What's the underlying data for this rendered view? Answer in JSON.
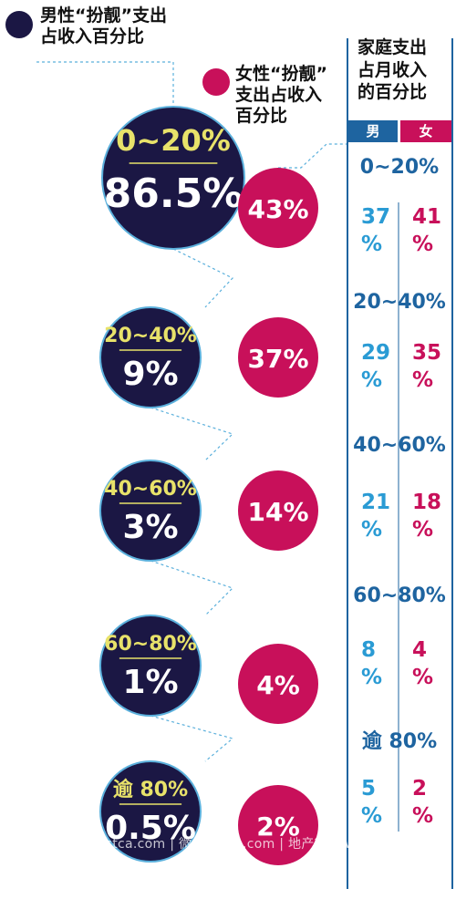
{
  "legend": {
    "male_line1": "男性“扮靓”支出",
    "male_line2": "占收入百分比",
    "female_line1": "女性“扮靓”",
    "female_line2": "支出占收入",
    "female_line3": "百分比"
  },
  "side_table": {
    "title_line1": "家庭支出",
    "title_line2": "占月收入",
    "title_line3": "的百分比",
    "header_male": "男",
    "header_female": "女"
  },
  "watermark": "加西网 westca.com | 微 westca.com | 地产微信 westcahouse",
  "colors": {
    "male": "#1b1744",
    "female": "#c8105a",
    "range_label": "#e8e26a",
    "side_blue": "#1e64a0",
    "side_male_value": "#2a9bd4",
    "connector": "#5bb0dc"
  },
  "chart_data": {
    "type": "table",
    "categories": [
      "0~20%",
      "20~40%",
      "40~60%",
      "60~80%",
      "逾 80%"
    ],
    "series": [
      {
        "name": "男性“扮靓”支出占收入百分比",
        "values": [
          86.5,
          9,
          3,
          1,
          0.5
        ],
        "labels": [
          "86.5%",
          "9%",
          "3%",
          "1%",
          "0.5%"
        ]
      },
      {
        "name": "女性“扮靓”支出占收入百分比",
        "values": [
          43,
          37,
          14,
          4,
          2
        ],
        "labels": [
          "43%",
          "37%",
          "14%",
          "4%",
          "2%"
        ]
      },
      {
        "name": "家庭支出占月收入的百分比 男",
        "values": [
          37,
          29,
          21,
          8,
          5
        ],
        "labels": [
          "37",
          "29",
          "21",
          "8",
          "5"
        ]
      },
      {
        "name": "家庭支出占月收入的百分比 女",
        "values": [
          41,
          35,
          18,
          4,
          2
        ],
        "labels": [
          "41",
          "35",
          "18",
          "4",
          "2"
        ]
      }
    ],
    "side_ranges": [
      "0~20%",
      "20~40%",
      "40~60%",
      "60~80%",
      "逾 80%"
    ],
    "unit": "%"
  }
}
